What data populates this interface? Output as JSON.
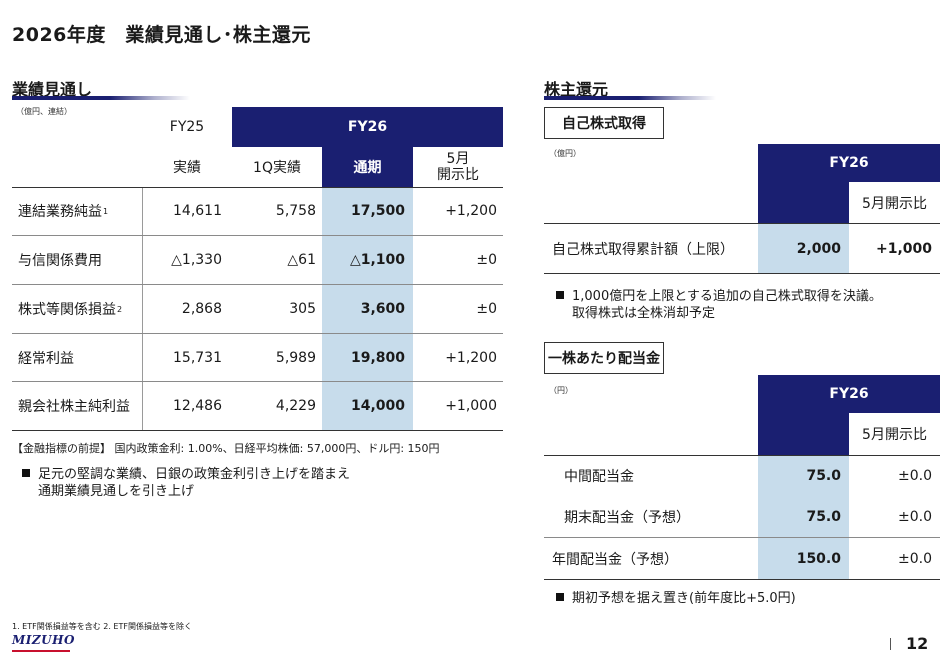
{
  "page_title": "2026年度　業績見通し･株主還元",
  "left": {
    "section_title": "業績見通し",
    "unit": "（億円、連結）",
    "header": {
      "fy25": "FY25",
      "fy26": "FY26",
      "sub_actual": "実績",
      "sub_1q": "1Q実績",
      "sub_full": "通期",
      "sub_may_l1": "5月",
      "sub_may_l2": "開示比"
    },
    "rows": [
      {
        "label": "連結業務純益",
        "sup": "1",
        "fy25": "14,611",
        "q1": "5,758",
        "full": "17,500",
        "diff": "+1,200"
      },
      {
        "label": "与信関係費用",
        "sup": "",
        "fy25": "△1,330",
        "q1": "△61",
        "full": "△1,100",
        "diff": "±0"
      },
      {
        "label": "株式等関係損益",
        "sup": "2",
        "fy25": "2,868",
        "q1": "305",
        "full": "3,600",
        "diff": "±0"
      },
      {
        "label": "経常利益",
        "sup": "",
        "fy25": "15,731",
        "q1": "5,989",
        "full": "19,800",
        "diff": "+1,200"
      },
      {
        "label": "親会社株主純利益",
        "sup": "",
        "fy25": "12,486",
        "q1": "4,229",
        "full": "14,000",
        "diff": "+1,000"
      }
    ],
    "premise": "【金融指標の前提】 国内政策金利: 1.00%、日経平均株価: 57,000円、ドル円: 150円",
    "bullet_l1": "足元の堅調な業績、日銀の政策金利引き上げを踏まえ",
    "bullet_l2": "通期業績見通しを引き上げ"
  },
  "right": {
    "section_title": "株主還元",
    "buyback": {
      "box_label": "自己株式取得",
      "unit": "（億円）",
      "fy26": "FY26",
      "may": "5月開示比",
      "row_label": "自己株式取得累計額（上限）",
      "value": "2,000",
      "diff": "+1,000",
      "bullet_l1": "1,000億円を上限とする追加の自己株式取得を決議。",
      "bullet_l2": "取得株式は全株消却予定"
    },
    "dividend": {
      "box_label": "一株あたり配当金",
      "unit": "（円）",
      "fy26": "FY26",
      "may": "5月開示比",
      "rows": [
        {
          "label": "中間配当金",
          "value": "75.0",
          "diff": "±0.0"
        },
        {
          "label": "期末配当金（予想）",
          "value": "75.0",
          "diff": "±0.0"
        },
        {
          "label": "年間配当金（予想）",
          "value": "150.0",
          "diff": "±0.0"
        }
      ],
      "bullet": "期初予想を据え置き(前年度比+5.0円)"
    }
  },
  "footnote": "1. ETF関係損益等を含む 2. ETF関係損益等を除く",
  "logo": "MIZUHO",
  "page_number": "12"
}
